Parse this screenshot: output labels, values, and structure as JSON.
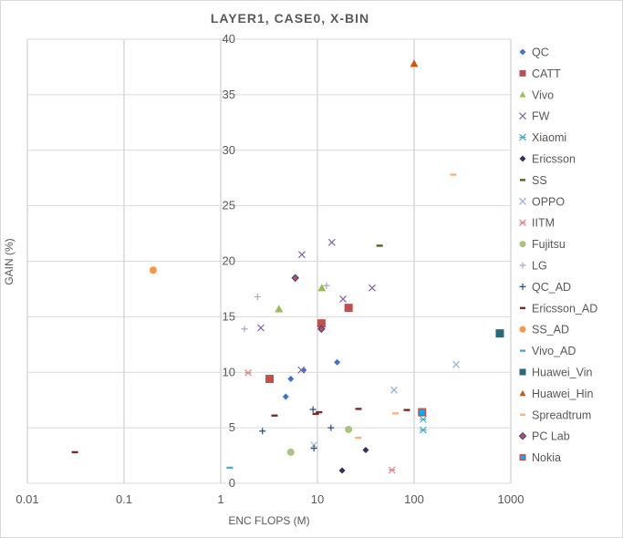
{
  "chart_data": {
    "type": "scatter",
    "title": "LAYER1, CASE0, X-BIN",
    "xlabel": "ENC FLOPS (M)",
    "ylabel": "GAIN (%)",
    "xscale": "log",
    "xlim": [
      0.01,
      1000
    ],
    "ylim": [
      0,
      40
    ],
    "xticks": [
      "0.01",
      "0.1",
      "1",
      "10",
      "100",
      "1000"
    ],
    "yticks": [
      "0",
      "5",
      "10",
      "15",
      "20",
      "25",
      "30",
      "35",
      "40"
    ],
    "grid": "vertical and horizontal major",
    "legend_position": "right",
    "series": [
      {
        "name": "QC",
        "marker": "diamond",
        "color": "#4472C4",
        "points": [
          [
            4.7,
            7.8
          ],
          [
            5.3,
            9.4
          ],
          [
            7.2,
            10.2
          ],
          [
            16,
            10.9
          ]
        ]
      },
      {
        "name": "CATT",
        "marker": "square",
        "color": "#C0504D",
        "points": [
          [
            3.2,
            9.4
          ],
          [
            11,
            14.4
          ],
          [
            21,
            15.8
          ]
        ]
      },
      {
        "name": "Vivo",
        "marker": "triangle",
        "color": "#9BBB59",
        "points": [
          [
            4.0,
            15.7
          ],
          [
            11.1,
            17.6
          ]
        ]
      },
      {
        "name": "FW",
        "marker": "x",
        "color": "#8064A2",
        "points": [
          [
            2.6,
            14.0
          ],
          [
            6.8,
            10.2
          ],
          [
            6.9,
            20.6
          ],
          [
            14.1,
            21.7
          ],
          [
            18.4,
            16.6
          ],
          [
            36.8,
            17.6
          ]
        ]
      },
      {
        "name": "Xiaomi",
        "marker": "asterisk",
        "color": "#4BACC6",
        "points": [
          [
            124,
            5.75
          ],
          [
            124,
            4.8
          ]
        ]
      },
      {
        "name": "Ericsson",
        "marker": "diamond",
        "color": "#3B2E5A",
        "points": [
          [
            18,
            1.15
          ],
          [
            31.6,
            3.0
          ]
        ]
      },
      {
        "name": "SS",
        "marker": "dash",
        "color": "#4F6228",
        "points": [
          [
            44,
            21.4
          ]
        ]
      },
      {
        "name": "OPPO",
        "marker": "x",
        "color": "#95B3D7",
        "points": [
          [
            9.2,
            3.45
          ],
          [
            62,
            8.4
          ],
          [
            272,
            10.7
          ]
        ]
      },
      {
        "name": "IITM",
        "marker": "asterisk",
        "color": "#E08C8A",
        "points": [
          [
            1.92,
            9.95
          ],
          [
            59,
            1.2
          ]
        ]
      },
      {
        "name": "Fujitsu",
        "marker": "circle",
        "color": "#A9C47F",
        "points": [
          [
            5.3,
            2.8
          ],
          [
            21,
            4.85
          ]
        ]
      },
      {
        "name": "LG",
        "marker": "plus",
        "color": "#B3A2C7",
        "points": [
          [
            1.76,
            13.9
          ],
          [
            2.4,
            16.8
          ],
          [
            12.4,
            17.8
          ]
        ]
      },
      {
        "name": "QC_AD",
        "marker": "plus",
        "color": "#2C4D75",
        "points": [
          [
            2.7,
            4.7
          ],
          [
            9.0,
            6.65
          ],
          [
            9.2,
            3.15
          ],
          [
            13.8,
            5.0
          ]
        ]
      },
      {
        "name": "Ericsson_AD",
        "marker": "dash",
        "color": "#772C2A",
        "points": [
          [
            0.031,
            2.8
          ],
          [
            3.6,
            6.1
          ],
          [
            9.6,
            6.25
          ],
          [
            10.4,
            6.4
          ],
          [
            26.6,
            6.7
          ],
          [
            84,
            6.6
          ]
        ]
      },
      {
        "name": "SS_AD",
        "marker": "circle",
        "color": "#F79646",
        "points": [
          [
            0.2,
            19.2
          ]
        ]
      },
      {
        "name": "Vivo_AD",
        "marker": "dash",
        "color": "#4BACC6",
        "points": [
          [
            1.24,
            1.4
          ]
        ]
      },
      {
        "name": "Huawei_Vin",
        "marker": "square",
        "color": "#276A7C",
        "points": [
          [
            770,
            13.5
          ]
        ]
      },
      {
        "name": "Huawei_Hin",
        "marker": "triangle",
        "color": "#C55A11",
        "points": [
          [
            100,
            37.8
          ]
        ]
      },
      {
        "name": "Spreadtrum",
        "marker": "dash",
        "color": "#FAB27A",
        "points": [
          [
            26.5,
            4.1
          ],
          [
            64,
            6.3
          ],
          [
            254,
            27.8
          ]
        ]
      },
      {
        "name": "PC Lab",
        "marker": "diamond-pc",
        "color": "#3B4E8C",
        "points": [
          [
            5.9,
            18.5
          ],
          [
            11,
            13.9
          ]
        ]
      },
      {
        "name": "Nokia",
        "marker": "square-nokia",
        "color": "#00B0F0",
        "points": [
          [
            121,
            6.4
          ]
        ]
      }
    ]
  }
}
